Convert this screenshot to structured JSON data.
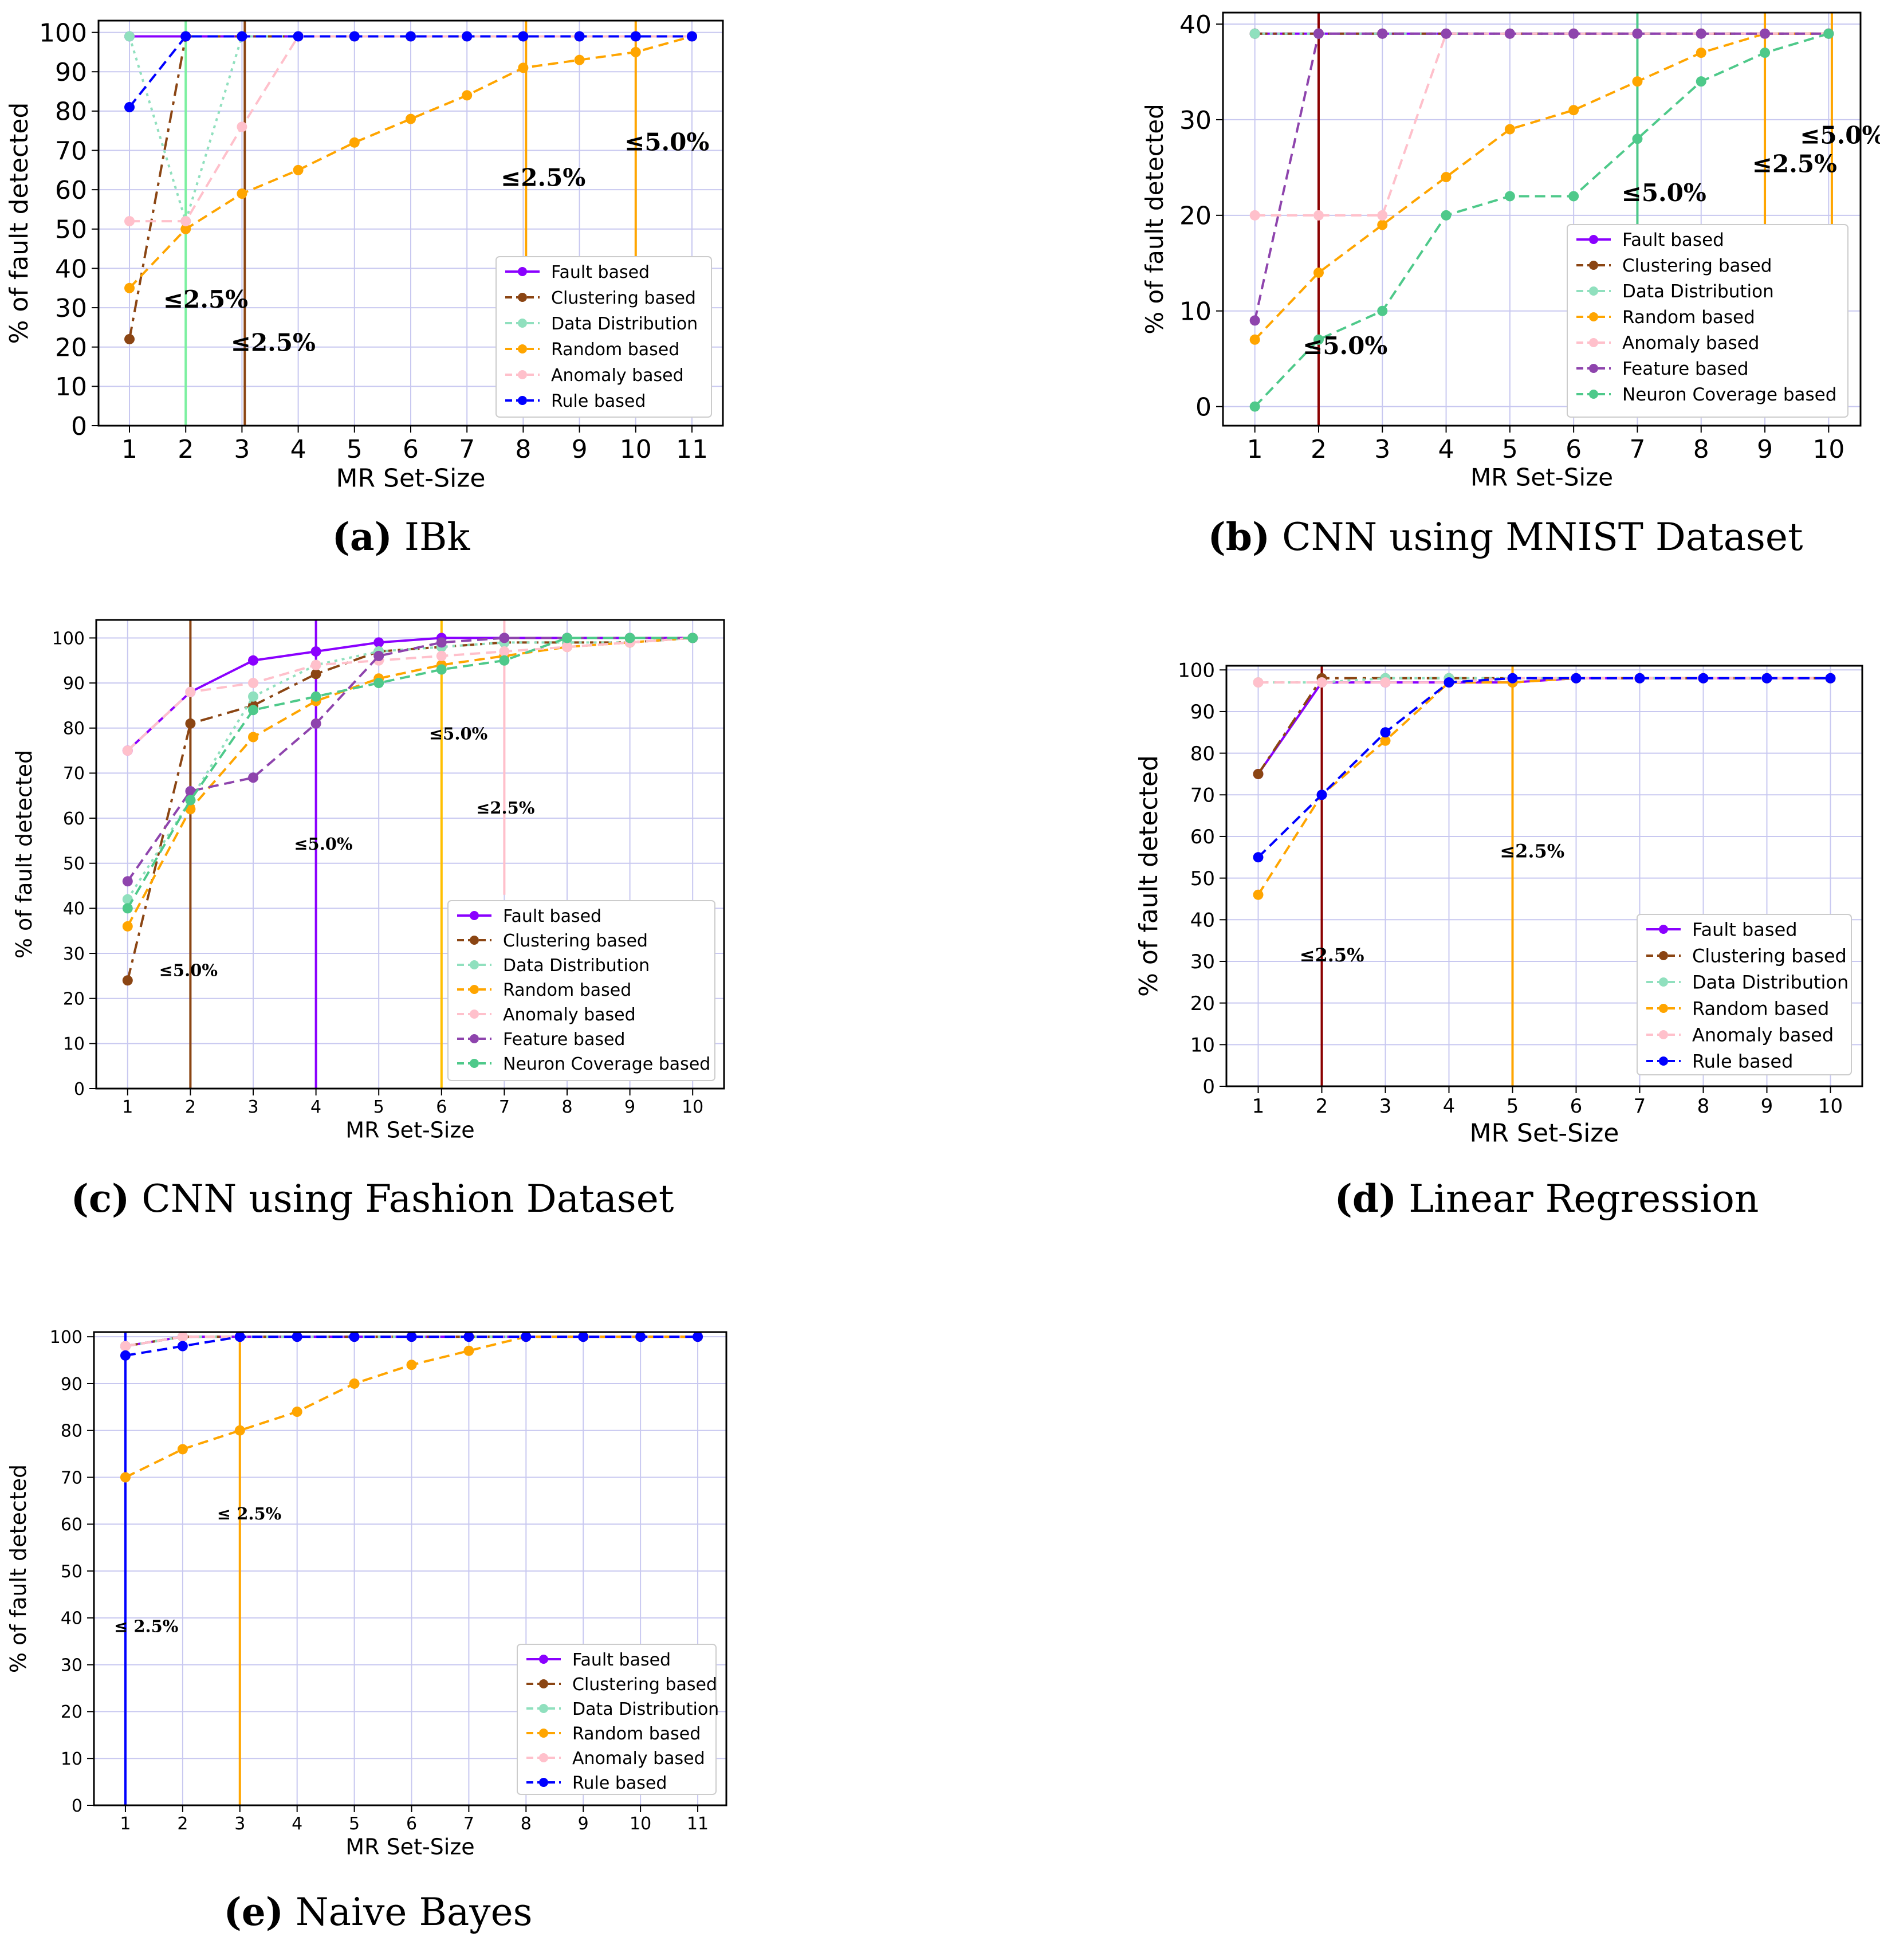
{
  "figure": {
    "series_styles": {
      "Fault based": {
        "color": "#8a00ff",
        "dash": ""
      },
      "Clustering based": {
        "color": "#8b4513",
        "dash": "22,10,6,10"
      },
      "Data Distribution": {
        "color": "#90e0be",
        "dash": "5,8"
      },
      "Random based": {
        "color": "#ffa500",
        "dash": "18,10"
      },
      "Anomaly based": {
        "color": "#ffc0cb",
        "dash": "18,10"
      },
      "Feature based": {
        "color": "#8e44ad",
        "dash": "18,10"
      },
      "Neuron Coverage based": {
        "color": "#4ec98a",
        "dash": "18,10"
      },
      "Rule based": {
        "color": "#0000ff",
        "dash": "18,10"
      }
    }
  },
  "chart_data": [
    {
      "id": "a",
      "type": "line",
      "caption_letter": "(a)",
      "caption_text": " IBk",
      "xlabel": "MR Set-Size",
      "ylabel": "% of fault detected",
      "x": [
        1,
        2,
        3,
        4,
        5,
        6,
        7,
        8,
        9,
        10,
        11
      ],
      "xlim": [
        0.45,
        11.55
      ],
      "ylim": [
        0,
        103
      ],
      "yticks": [
        0,
        10,
        20,
        30,
        40,
        50,
        60,
        70,
        80,
        90,
        100
      ],
      "grid": true,
      "legend_position": "bottom-right",
      "series": [
        {
          "name": "Fault based",
          "values": [
            99,
            99,
            99,
            99,
            99,
            99,
            99,
            99,
            99,
            99,
            99
          ]
        },
        {
          "name": "Clustering based",
          "values": [
            22,
            99,
            99,
            99,
            99,
            99,
            99,
            99,
            99,
            99,
            99
          ]
        },
        {
          "name": "Data Distribution",
          "values": [
            99,
            52,
            99,
            99,
            99,
            99,
            99,
            99,
            99,
            99,
            99
          ]
        },
        {
          "name": "Random based",
          "values": [
            35,
            50,
            59,
            65,
            72,
            78,
            84,
            91,
            93,
            95,
            99
          ]
        },
        {
          "name": "Anomaly based",
          "values": [
            52,
            52,
            76,
            99,
            99,
            99,
            99,
            99,
            99,
            99,
            99
          ]
        },
        {
          "name": "Rule based",
          "values": [
            81,
            99,
            99,
            99,
            99,
            99,
            99,
            99,
            99,
            99,
            99
          ]
        }
      ],
      "vlines": [
        {
          "x": 2,
          "y_from": 0,
          "y_to": 103,
          "color": "#7cf0a0"
        },
        {
          "x": 3.05,
          "y_from": 0,
          "y_to": 103,
          "color": "#8b4513"
        },
        {
          "x": 8.05,
          "y_from": 42,
          "y_to": 103,
          "color": "#ffa500"
        },
        {
          "x": 10,
          "y_from": 42,
          "y_to": 103,
          "color": "#ffa500"
        }
      ],
      "annotations": [
        {
          "text": "≤2.5%",
          "x": 1.6,
          "y": 30
        },
        {
          "text": "≤2.5%",
          "x": 2.8,
          "y": 19
        },
        {
          "text": "≤2.5%",
          "x": 7.6,
          "y": 61
        },
        {
          "text": "≤5.0%",
          "x": 9.8,
          "y": 70
        }
      ]
    },
    {
      "id": "b",
      "type": "line",
      "caption_letter": "(b)",
      "caption_text": " CNN using MNIST Dataset",
      "xlabel": "MR Set-Size",
      "ylabel": "% of fault detected",
      "x": [
        1,
        2,
        3,
        4,
        5,
        6,
        7,
        8,
        9,
        10
      ],
      "xlim": [
        0.5,
        10.5
      ],
      "ylim": [
        -2,
        41.2
      ],
      "yticks": [
        0,
        10,
        20,
        30,
        40
      ],
      "grid": true,
      "legend_position": "bottom-right",
      "series": [
        {
          "name": "Fault based",
          "values": [
            39,
            39,
            39,
            39,
            39,
            39,
            39,
            39,
            39,
            39
          ]
        },
        {
          "name": "Clustering based",
          "values": [
            39,
            39,
            39,
            39,
            39,
            39,
            39,
            39,
            39,
            39
          ]
        },
        {
          "name": "Data Distribution",
          "values": [
            39,
            39,
            39,
            39,
            39,
            39,
            39,
            39,
            39,
            39
          ]
        },
        {
          "name": "Random based",
          "values": [
            7,
            14,
            19,
            24,
            29,
            31,
            34,
            37,
            39,
            39
          ]
        },
        {
          "name": "Anomaly based",
          "values": [
            20,
            20,
            20,
            39,
            39,
            39,
            39,
            39,
            39,
            39
          ]
        },
        {
          "name": "Feature based",
          "values": [
            9,
            39,
            39,
            39,
            39,
            39,
            39,
            39,
            39,
            39
          ]
        },
        {
          "name": "Neuron Coverage based",
          "values": [
            0,
            7,
            10,
            20,
            22,
            22,
            28,
            34,
            37,
            39
          ]
        }
      ],
      "vlines": [
        {
          "x": 2,
          "y_from": -2,
          "y_to": 41.2,
          "color": "#8b0000"
        },
        {
          "x": 7,
          "y_from": 19,
          "y_to": 41.2,
          "color": "#4ec98a"
        },
        {
          "x": 9,
          "y_from": 19,
          "y_to": 41.2,
          "color": "#ffa500"
        },
        {
          "x": 10.05,
          "y_from": 19,
          "y_to": 41.2,
          "color": "#ffa500"
        }
      ],
      "annotations": [
        {
          "text": "≤5.0%",
          "x": 1.75,
          "y": 5.5
        },
        {
          "text": "≤5.0%",
          "x": 6.75,
          "y": 21.5
        },
        {
          "text": "≤2.5%",
          "x": 8.8,
          "y": 24.5
        },
        {
          "text": "≤5.0%",
          "x": 9.55,
          "y": 27.5
        }
      ]
    },
    {
      "id": "c",
      "type": "line",
      "caption_letter": "(c)",
      "caption_text": " CNN using Fashion Dataset",
      "xlabel": "MR Set-Size",
      "ylabel": "% of fault detected",
      "x": [
        1,
        2,
        3,
        4,
        5,
        6,
        7,
        8,
        9,
        10
      ],
      "xlim": [
        0.5,
        10.5
      ],
      "ylim": [
        0,
        104
      ],
      "yticks": [
        0,
        10,
        20,
        30,
        40,
        50,
        60,
        70,
        80,
        90,
        100
      ],
      "grid": true,
      "legend_position": "bottom-right",
      "series": [
        {
          "name": "Fault based",
          "values": [
            75,
            88,
            95,
            97,
            99,
            100,
            100,
            100,
            100,
            100
          ]
        },
        {
          "name": "Clustering based",
          "values": [
            24,
            81,
            85,
            92,
            97,
            98,
            99,
            99,
            99,
            100
          ]
        },
        {
          "name": "Data Distribution",
          "values": [
            42,
            64,
            87,
            94,
            97,
            98,
            99,
            99,
            99,
            100
          ]
        },
        {
          "name": "Random based",
          "values": [
            36,
            62,
            78,
            86,
            91,
            94,
            96,
            98,
            99,
            100
          ]
        },
        {
          "name": "Anomaly based",
          "values": [
            75,
            88,
            90,
            94,
            95,
            96,
            97,
            98,
            99,
            100
          ]
        },
        {
          "name": "Feature based",
          "values": [
            46,
            66,
            69,
            81,
            96,
            99,
            100,
            100,
            100,
            100
          ]
        },
        {
          "name": "Neuron Coverage based",
          "values": [
            40,
            64,
            84,
            87,
            90,
            93,
            95,
            100,
            100,
            100
          ]
        }
      ],
      "vlines": [
        {
          "x": 2,
          "y_from": 0,
          "y_to": 104,
          "color": "#8b4513"
        },
        {
          "x": 4,
          "y_from": 0,
          "y_to": 104,
          "color": "#8a00ff"
        },
        {
          "x": 6,
          "y_from": 0,
          "y_to": 104,
          "color": "#ffc000"
        },
        {
          "x": 7,
          "y_from": 43,
          "y_to": 104,
          "color": "#ffc0cb"
        }
      ],
      "annotations": [
        {
          "text": "≤5.0%",
          "x": 1.5,
          "y": 25
        },
        {
          "text": "≤5.0%",
          "x": 3.65,
          "y": 53
        },
        {
          "text": "≤5.0%",
          "x": 5.8,
          "y": 77.5
        },
        {
          "text": "≤2.5%",
          "x": 6.55,
          "y": 61
        }
      ]
    },
    {
      "id": "d",
      "type": "line",
      "caption_letter": "(d)",
      "caption_text": " Linear Regression",
      "xlabel": "MR Set-Size",
      "ylabel": "% of fault detected",
      "x": [
        1,
        2,
        3,
        4,
        5,
        6,
        7,
        8,
        9,
        10
      ],
      "xlim": [
        0.5,
        10.5
      ],
      "ylim": [
        0,
        101
      ],
      "yticks": [
        0,
        10,
        20,
        30,
        40,
        50,
        60,
        70,
        80,
        90,
        100
      ],
      "grid": true,
      "legend_position": "bottom-right",
      "series": [
        {
          "name": "Fault based",
          "values": [
            75,
            97,
            97,
            97,
            97,
            98,
            98,
            98,
            98,
            98
          ]
        },
        {
          "name": "Clustering based",
          "values": [
            75,
            98,
            98,
            98,
            98,
            98,
            98,
            98,
            98,
            98
          ]
        },
        {
          "name": "Data Distribution",
          "values": [
            97,
            97,
            98,
            98,
            98,
            98,
            98,
            98,
            98,
            98
          ]
        },
        {
          "name": "Random based",
          "values": [
            46,
            70,
            83,
            97,
            97,
            98,
            98,
            98,
            98,
            98
          ]
        },
        {
          "name": "Anomaly based",
          "values": [
            97,
            97,
            97,
            97,
            98,
            98,
            98,
            98,
            98,
            98
          ]
        },
        {
          "name": "Rule based",
          "values": [
            55,
            70,
            85,
            97,
            98,
            98,
            98,
            98,
            98,
            98
          ]
        }
      ],
      "vlines": [
        {
          "x": 2,
          "y_from": 0,
          "y_to": 101,
          "color": "#8b0000"
        },
        {
          "x": 5,
          "y_from": 0,
          "y_to": 101,
          "color": "#ffa500"
        }
      ],
      "annotations": [
        {
          "text": "≤2.5%",
          "x": 1.65,
          "y": 30
        },
        {
          "text": "≤2.5%",
          "x": 4.8,
          "y": 55
        }
      ]
    },
    {
      "id": "e",
      "type": "line",
      "caption_letter": "(e)",
      "caption_text": " Naive Bayes",
      "xlabel": "MR Set-Size",
      "ylabel": "% of fault detected",
      "x": [
        1,
        2,
        3,
        4,
        5,
        6,
        7,
        8,
        9,
        10,
        11
      ],
      "xlim": [
        0.45,
        11.5
      ],
      "ylim": [
        0,
        101
      ],
      "yticks": [
        0,
        10,
        20,
        30,
        40,
        50,
        60,
        70,
        80,
        90,
        100
      ],
      "grid": true,
      "legend_position": "bottom-right",
      "series": [
        {
          "name": "Fault based",
          "values": [
            98,
            100,
            100,
            100,
            100,
            100,
            100,
            100,
            100,
            100,
            100
          ]
        },
        {
          "name": "Clustering based",
          "values": [
            98,
            100,
            100,
            100,
            100,
            100,
            100,
            100,
            100,
            100,
            100
          ]
        },
        {
          "name": "Data Distribution",
          "values": [
            98,
            100,
            100,
            100,
            100,
            100,
            100,
            100,
            100,
            100,
            100
          ]
        },
        {
          "name": "Random based",
          "values": [
            70,
            76,
            80,
            84,
            90,
            94,
            97,
            100,
            100,
            100,
            100
          ]
        },
        {
          "name": "Anomaly based",
          "values": [
            98,
            100,
            100,
            100,
            100,
            100,
            100,
            100,
            100,
            100,
            100
          ]
        },
        {
          "name": "Rule based",
          "values": [
            96,
            98,
            100,
            100,
            100,
            100,
            100,
            100,
            100,
            100,
            100
          ]
        }
      ],
      "vlines": [
        {
          "x": 1,
          "y_from": 0,
          "y_to": 101,
          "color": "#0000ff"
        },
        {
          "x": 3,
          "y_from": 0,
          "y_to": 101,
          "color": "#ffa500"
        }
      ],
      "annotations": [
        {
          "text": "≤ 2.5%",
          "x": 2.6,
          "y": 61
        },
        {
          "text": "≤ 2.5%",
          "x": 0.8,
          "y": 37
        }
      ]
    }
  ]
}
